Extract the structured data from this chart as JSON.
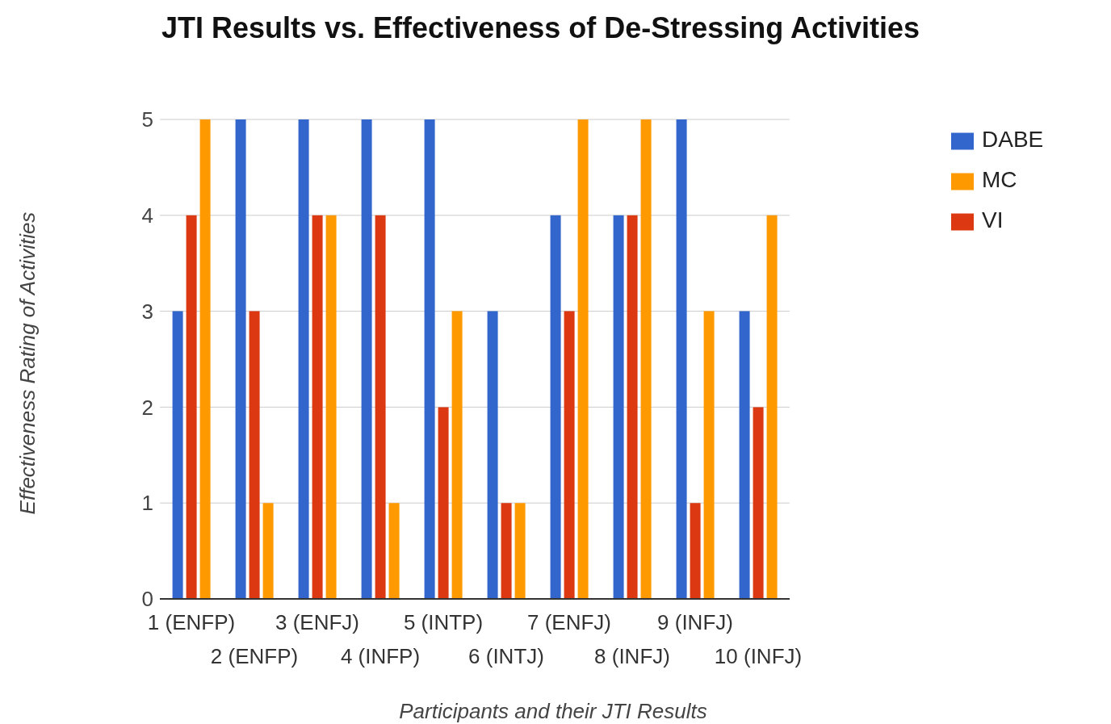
{
  "chart_data": {
    "type": "bar",
    "title": "JTI Results vs. Effectiveness of De-Stressing Activities",
    "xlabel": "Participants and their JTI Results",
    "ylabel": "Effectiveness Rating of Activities",
    "categories": [
      "1 (ENFP)",
      "2 (ENFP)",
      "3 (ENFJ)",
      "4 (INFP)",
      "5 (INTP)",
      "6 (INTJ)",
      "7 (ENFJ)",
      "8 (INFJ)",
      "9 (INFJ)",
      "10 (INFJ)"
    ],
    "series": [
      {
        "name": "DABE",
        "color": "#3366cc",
        "values": [
          3,
          5,
          5,
          5,
          5,
          3,
          4,
          4,
          5,
          3
        ]
      },
      {
        "name": "VI",
        "color": "#dc3912",
        "values": [
          4,
          3,
          4,
          4,
          2,
          1,
          3,
          4,
          1,
          2
        ]
      },
      {
        "name": "MC",
        "color": "#ff9900",
        "values": [
          5,
          1,
          4,
          1,
          3,
          1,
          5,
          5,
          3,
          4
        ]
      }
    ],
    "ylim": [
      0,
      5
    ],
    "yticks": [
      0,
      1,
      2,
      3,
      4,
      5
    ],
    "grid": "y",
    "legend": "top right"
  }
}
